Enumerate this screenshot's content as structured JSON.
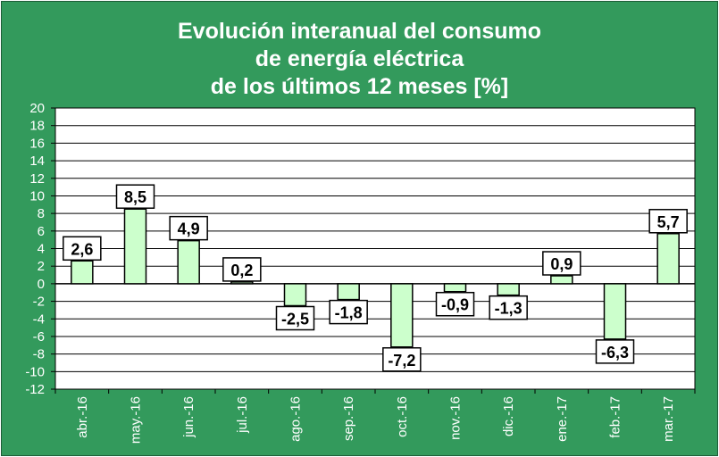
{
  "colors": {
    "background": "#339a5c",
    "plot_area": "#ffffff",
    "bar_fill": "#ccffcc",
    "bar_stroke": "#000000",
    "gridline": "#000000",
    "title_text": "#ffffff",
    "axis_text": "#ffffff",
    "label_fill": "#ffffff"
  },
  "chart_data": {
    "type": "bar",
    "title_lines": [
      "Evolución interanual del consumo",
      "de energía eléctrica",
      "de los últimos 12 meses [%]"
    ],
    "categories": [
      "abr.-16",
      "may.-16",
      "jun.-16",
      "jul.-16",
      "ago.-16",
      "sep.-16",
      "oct.-16",
      "nov.-16",
      "dic.-16",
      "ene.-17",
      "feb.-17",
      "mar.-17"
    ],
    "values": [
      2.6,
      8.5,
      4.9,
      0.2,
      -2.5,
      -1.8,
      -7.2,
      -0.9,
      -1.3,
      0.9,
      -6.3,
      5.7
    ],
    "data_labels": [
      "2,6",
      "8,5",
      "4,9",
      "0,2",
      "-2,5",
      "-1,8",
      "-7,2",
      "-0,9",
      "-1,3",
      "0,9",
      "-6,3",
      "5,7"
    ],
    "ylim": [
      -12,
      20
    ],
    "y_ticks": [
      "20",
      "18",
      "16",
      "14",
      "12",
      "10",
      "8",
      "6",
      "4",
      "2",
      "0",
      "-2",
      "-4",
      "-6",
      "-8",
      "-10",
      "-12"
    ],
    "grid": true,
    "legend": "none",
    "xlabel": "",
    "ylabel": ""
  }
}
